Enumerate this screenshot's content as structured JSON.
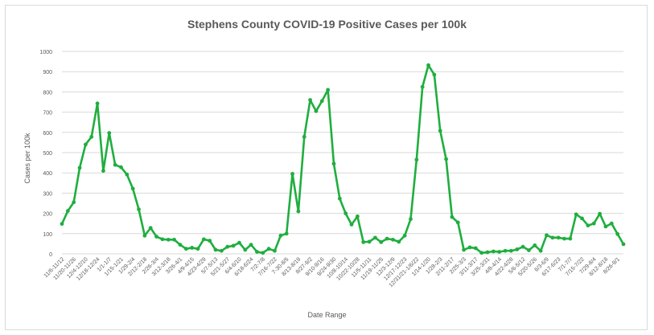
{
  "chart_data": {
    "type": "line",
    "title": "Stephens County COVID-19 Positive Cases per 100k",
    "xlabel": "Date Range",
    "ylabel": "Cases per 100k",
    "ylim": [
      0,
      1000
    ],
    "yticks": [
      0,
      100,
      200,
      300,
      400,
      500,
      600,
      700,
      800,
      900,
      1000
    ],
    "grid": "horizontal",
    "legend": "none",
    "x_tick_labels": [
      "11/6-11/12",
      "11/20-11/26",
      "12/4-12/10",
      "12/18-12/24",
      "1/1-1/7",
      "1/15-1/21",
      "1/29-2/4",
      "2/12-2/18",
      "2/26-3/4",
      "3/12-3/18",
      "3/26-4/1",
      "4/9-4/15",
      "4/23-4/29",
      "5/7-5/13",
      "5/21-5/27",
      "6/4-6/10",
      "6/18-6/24",
      "7/2-7/8",
      "7/16-7/22",
      "7-30-8/5",
      "8/13-8/19",
      "8/27-9/2",
      "9/10-9/16",
      "9/24-9/30",
      "10/8-10/14",
      "10/22-10/28",
      "11/5-11/11",
      "11/19-11/25",
      "12/3-12/9",
      "12/17-12/23",
      "12/31/21-1/6/22",
      "1/14-1/20",
      "1/28-2/3",
      "2/11-2/17",
      "2/25-3/3",
      "3/11-3/17",
      "3/25-3/31",
      "4/8-4/14",
      "4/22-4/28",
      "5/6-5/12",
      "5/20-5/26",
      "6/3-6/9",
      "6/17-6/23",
      "7/1-7/7",
      "7/15-7/22",
      "7/29-8/4",
      "8/12-8/18",
      "8/26-9/1"
    ],
    "series": [
      {
        "name": "",
        "values": [
          148,
          212,
          255,
          425,
          540,
          578,
          743,
          410,
          597,
          440,
          428,
          392,
          322,
          220,
          90,
          128,
          85,
          72,
          70,
          70,
          45,
          25,
          30,
          25,
          72,
          65,
          20,
          15,
          35,
          40,
          55,
          20,
          45,
          10,
          5,
          25,
          15,
          90,
          100,
          395,
          210,
          578,
          760,
          705,
          755,
          810,
          445,
          273,
          200,
          145,
          185,
          58,
          60,
          80,
          58,
          75,
          70,
          60,
          90,
          172,
          465,
          825,
          932,
          885,
          608,
          468,
          182,
          155,
          20,
          32,
          28,
          5,
          8,
          12,
          10,
          15,
          15,
          22,
          35,
          18,
          42,
          15,
          92,
          80,
          80,
          75,
          75,
          195,
          175,
          140,
          150,
          198,
          135,
          150,
          98,
          48
        ]
      }
    ],
    "colors": {
      "line": "#1fae3f",
      "marker": "#1fae3f",
      "grid": "#d9d9d9",
      "text": "#595959"
    }
  }
}
